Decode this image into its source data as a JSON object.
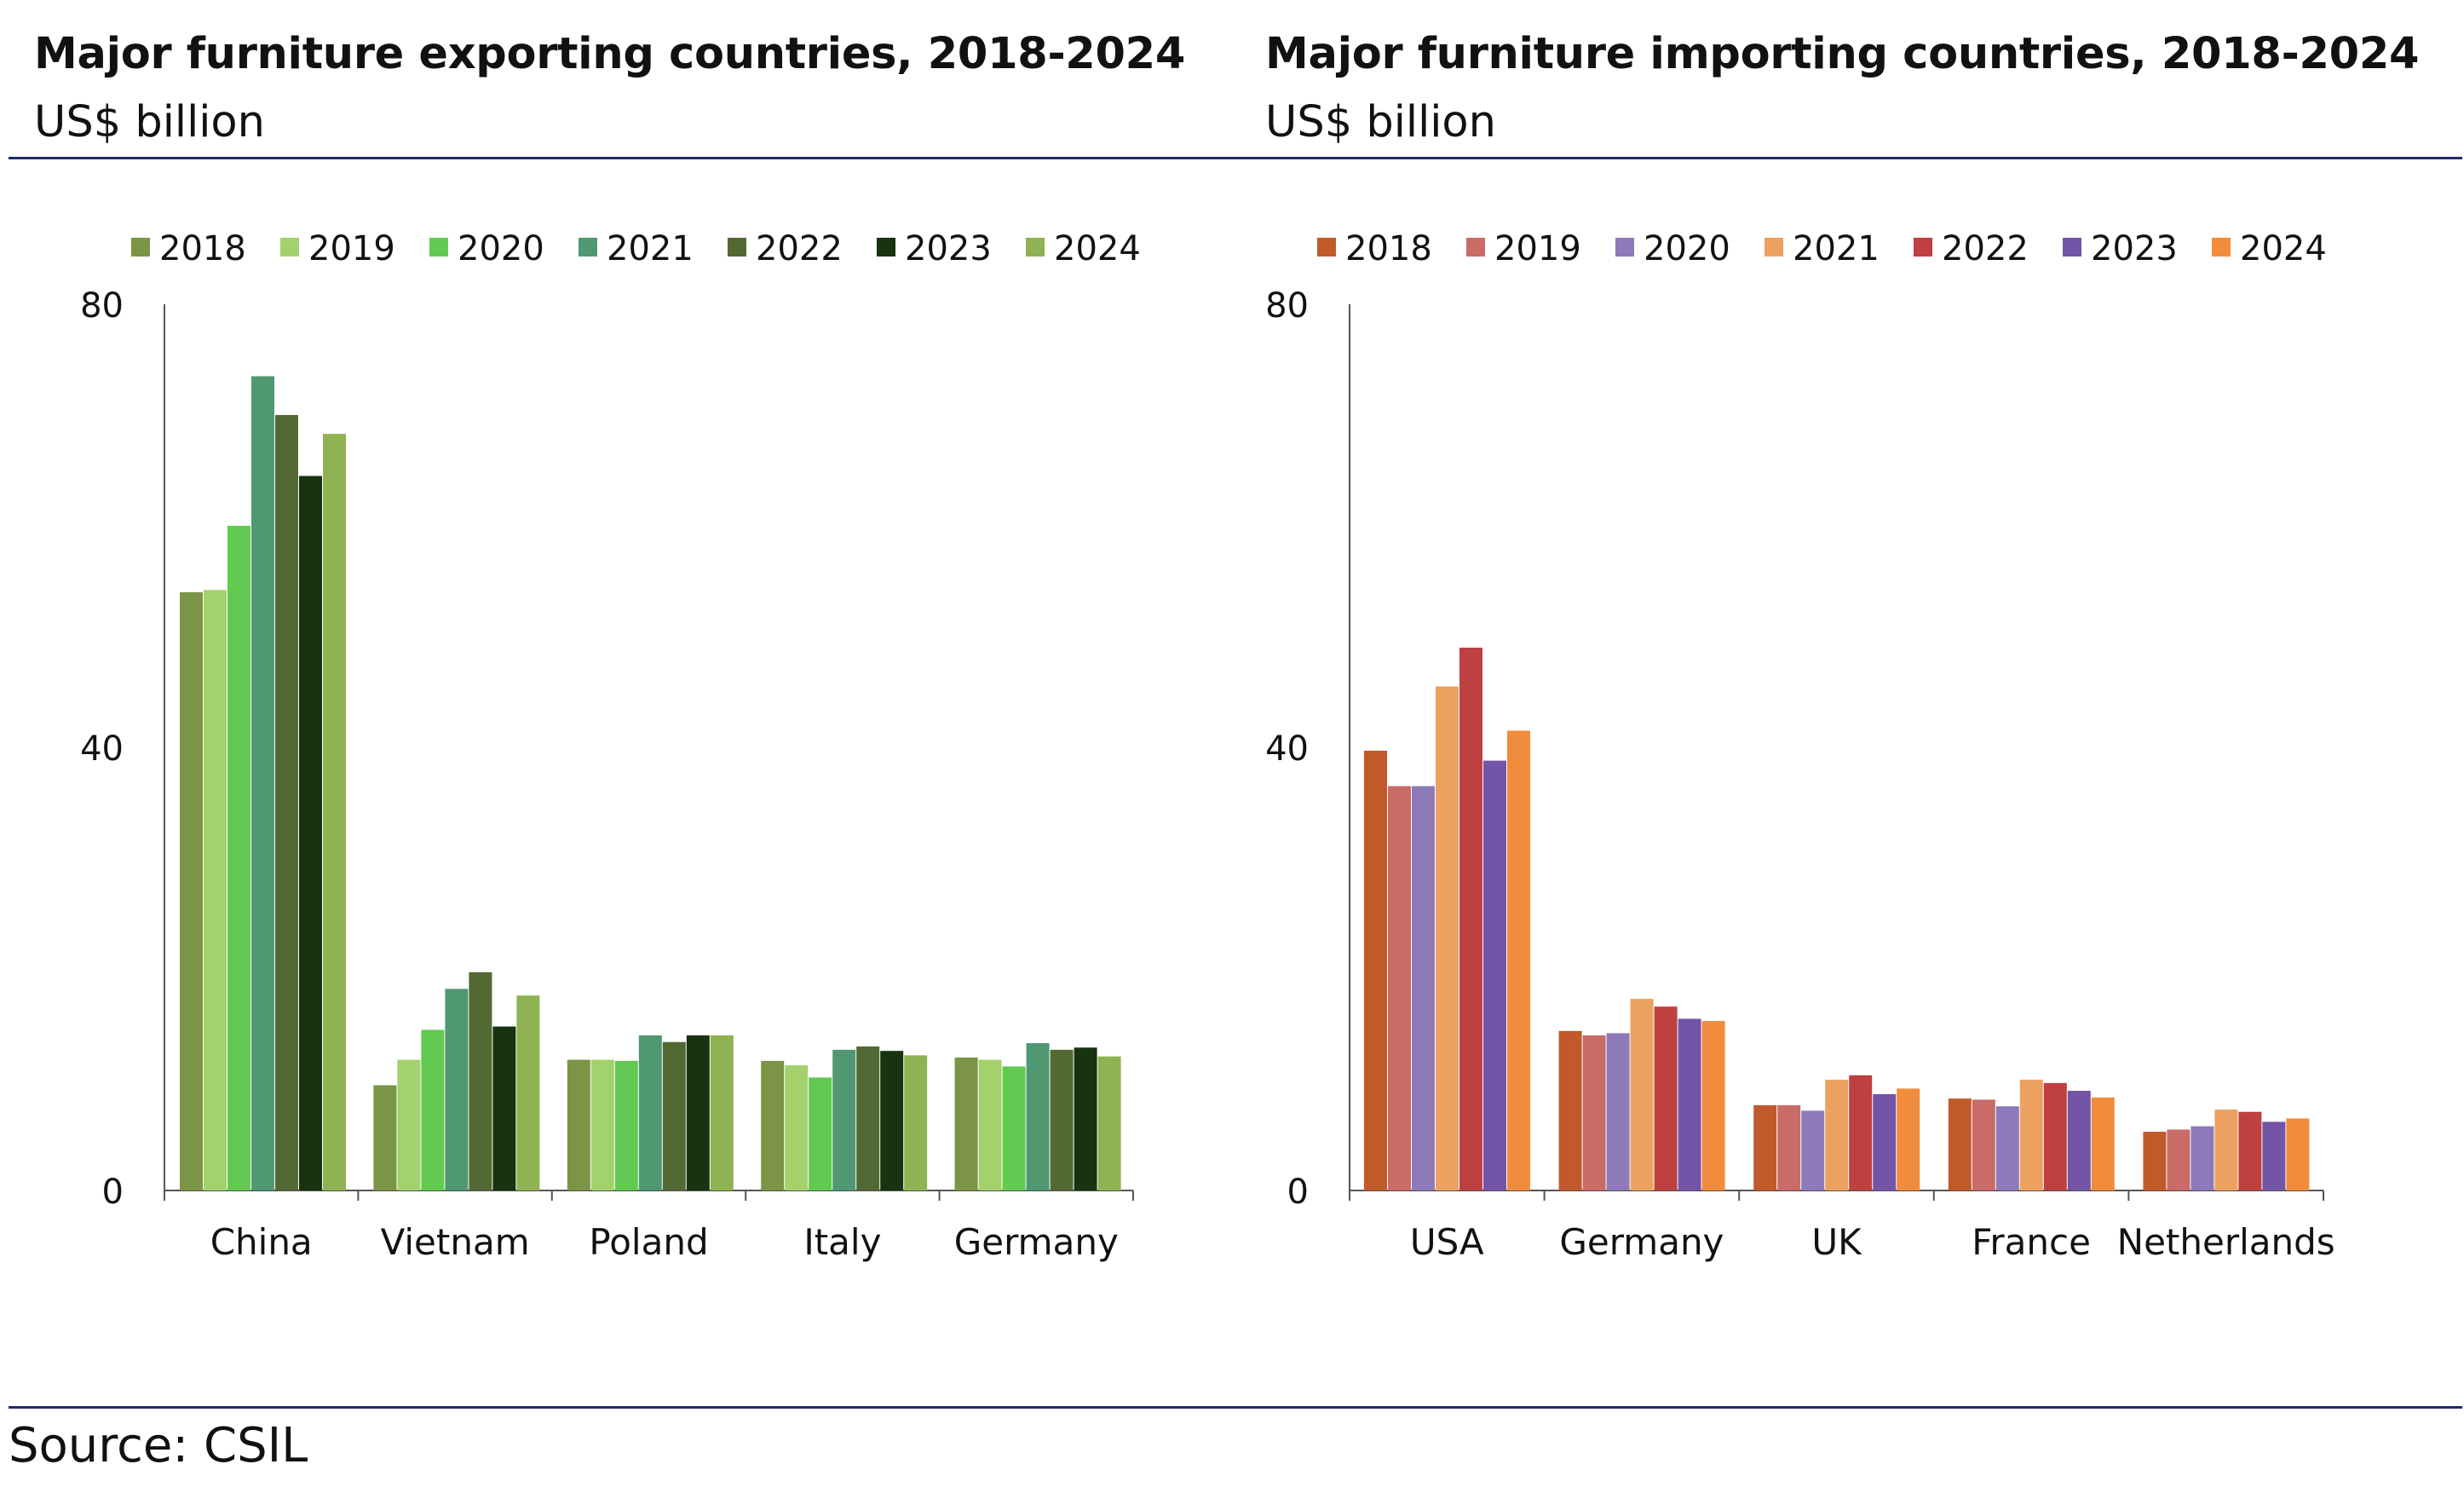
{
  "footer": {
    "source": "Source: CSIL"
  },
  "chart_data": [
    {
      "type": "bar",
      "title": "Major furniture exporting countries, 2018-2024",
      "subtitle": "US$ billion",
      "categories": [
        "China",
        "Vietnam",
        "Poland",
        "Italy",
        "Germany"
      ],
      "ylim": [
        0,
        80
      ],
      "yticks": [
        0,
        40,
        80
      ],
      "grid": false,
      "legend_position": "top",
      "series": [
        {
          "name": "2018",
          "color": "#7b9446",
          "values": [
            54,
            9.5,
            11.8,
            11.7,
            12.0
          ]
        },
        {
          "name": "2019",
          "color": "#a3d16b",
          "values": [
            54.2,
            11.8,
            11.8,
            11.3,
            11.8
          ]
        },
        {
          "name": "2020",
          "color": "#62c951",
          "values": [
            60,
            14.5,
            11.7,
            10.2,
            11.2
          ]
        },
        {
          "name": "2021",
          "color": "#4f9872",
          "values": [
            73.5,
            18.2,
            14.0,
            12.7,
            13.3
          ]
        },
        {
          "name": "2022",
          "color": "#536933",
          "values": [
            70,
            19.7,
            13.4,
            13.0,
            12.7
          ]
        },
        {
          "name": "2023",
          "color": "#17330f",
          "values": [
            64.5,
            14.8,
            14.0,
            12.6,
            12.9
          ]
        },
        {
          "name": "2024",
          "color": "#8fb252",
          "values": [
            68.3,
            17.6,
            14.0,
            12.2,
            12.1
          ]
        }
      ]
    },
    {
      "type": "bar",
      "title": "Major furniture importing countries, 2018-2024",
      "subtitle": "US$ billion",
      "categories": [
        "USA",
        "Germany",
        "UK",
        "France",
        "Netherlands"
      ],
      "ylim": [
        0,
        80
      ],
      "yticks": [
        0,
        40,
        80
      ],
      "grid": false,
      "legend_position": "top",
      "series": [
        {
          "name": "2018",
          "color": "#c05a2b",
          "values": [
            39.7,
            14.4,
            7.7,
            8.3,
            5.3
          ]
        },
        {
          "name": "2019",
          "color": "#c96b67",
          "values": [
            36.5,
            14.0,
            7.7,
            8.2,
            5.5
          ]
        },
        {
          "name": "2020",
          "color": "#8e7ab8",
          "values": [
            36.5,
            14.2,
            7.2,
            7.6,
            5.8
          ]
        },
        {
          "name": "2021",
          "color": "#eda160",
          "values": [
            45.5,
            17.3,
            10.0,
            10.0,
            7.3
          ]
        },
        {
          "name": "2022",
          "color": "#bf4040",
          "values": [
            49,
            16.6,
            10.4,
            9.7,
            7.1
          ]
        },
        {
          "name": "2023",
          "color": "#7454a6",
          "values": [
            38.8,
            15.5,
            8.7,
            9.0,
            6.2
          ]
        },
        {
          "name": "2024",
          "color": "#f08c3c",
          "values": [
            41.5,
            15.3,
            9.2,
            8.4,
            6.5
          ]
        }
      ]
    }
  ]
}
